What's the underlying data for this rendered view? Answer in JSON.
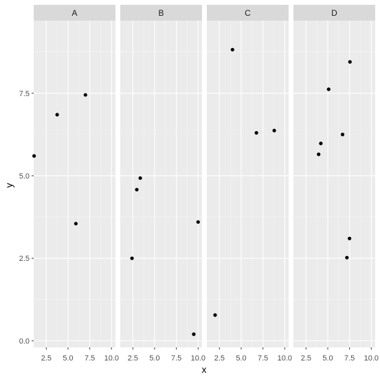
{
  "chart_data": {
    "type": "scatter",
    "layout": "facet_wrap",
    "xlabel": "x",
    "ylabel": "y",
    "xlim": [
      1.05,
      10.45
    ],
    "ylim": [
      -0.2,
      9.7
    ],
    "x_ticks": [
      "2.5",
      "5.0",
      "7.5",
      "10.0"
    ],
    "x_tick_values": [
      2.5,
      5.0,
      7.5,
      10.0
    ],
    "y_ticks": [
      "0.0",
      "2.5",
      "5.0",
      "7.5"
    ],
    "y_tick_values": [
      0.0,
      2.5,
      5.0,
      7.5
    ],
    "panels": [
      {
        "label": "A",
        "points": [
          [
            1.1,
            5.6
          ],
          [
            3.75,
            6.85
          ],
          [
            5.9,
            3.55
          ],
          [
            7.0,
            7.45
          ]
        ]
      },
      {
        "label": "B",
        "points": [
          [
            2.4,
            2.5
          ],
          [
            2.95,
            4.58
          ],
          [
            3.35,
            4.93
          ],
          [
            9.5,
            0.2
          ],
          [
            10.0,
            3.6
          ]
        ]
      },
      {
        "label": "C",
        "points": [
          [
            2.0,
            0.78
          ],
          [
            4.0,
            8.82
          ],
          [
            6.75,
            6.3
          ],
          [
            8.8,
            6.37
          ]
        ]
      },
      {
        "label": "D",
        "points": [
          [
            3.95,
            5.65
          ],
          [
            4.2,
            5.98
          ],
          [
            5.1,
            7.62
          ],
          [
            6.7,
            6.25
          ],
          [
            7.2,
            2.52
          ],
          [
            7.5,
            3.1
          ],
          [
            7.55,
            8.45
          ]
        ]
      }
    ],
    "colors": {
      "panel_bg": "#ebebeb",
      "strip_bg": "#d9d9d9",
      "grid_major": "#ffffff",
      "point": "#000000"
    },
    "grid": true
  }
}
